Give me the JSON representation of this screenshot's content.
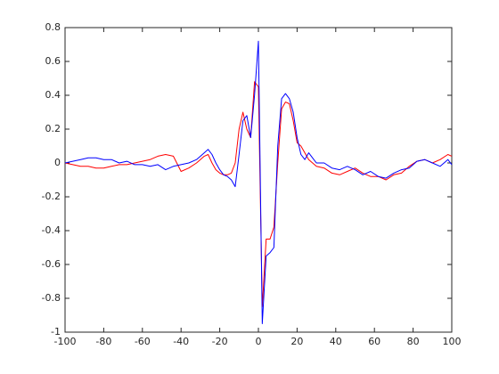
{
  "chart_data": {
    "type": "line",
    "x": [
      -100,
      -96,
      -92,
      -88,
      -84,
      -80,
      -76,
      -72,
      -68,
      -64,
      -60,
      -56,
      -52,
      -48,
      -44,
      -40,
      -36,
      -32,
      -28,
      -26,
      -24,
      -22,
      -20,
      -18,
      -16,
      -14,
      -12,
      -10,
      -8,
      -6,
      -4,
      -2,
      0,
      2,
      4,
      6,
      8,
      10,
      12,
      14,
      16,
      18,
      20,
      22,
      24,
      26,
      28,
      30,
      34,
      38,
      42,
      46,
      50,
      54,
      58,
      62,
      66,
      70,
      74,
      78,
      82,
      86,
      90,
      94,
      98,
      100
    ],
    "series": [
      {
        "color": "#ff0000",
        "values": [
          0.0,
          -0.01,
          -0.02,
          -0.02,
          -0.03,
          -0.03,
          -0.02,
          -0.01,
          -0.01,
          0.0,
          0.01,
          0.02,
          0.04,
          0.05,
          0.04,
          -0.05,
          -0.03,
          0.0,
          0.04,
          0.05,
          0.0,
          -0.04,
          -0.06,
          -0.07,
          -0.07,
          -0.06,
          0.0,
          0.2,
          0.3,
          0.2,
          0.15,
          0.48,
          0.45,
          -0.85,
          -0.45,
          -0.45,
          -0.38,
          0.0,
          0.32,
          0.36,
          0.35,
          0.25,
          0.12,
          0.1,
          0.06,
          0.02,
          0.0,
          -0.02,
          -0.03,
          -0.06,
          -0.07,
          -0.05,
          -0.03,
          -0.06,
          -0.08,
          -0.08,
          -0.1,
          -0.07,
          -0.06,
          -0.02,
          0.01,
          0.02,
          0.0,
          0.02,
          0.05,
          0.04
        ]
      },
      {
        "color": "#0000ff",
        "values": [
          0.0,
          0.01,
          0.02,
          0.03,
          0.03,
          0.02,
          0.02,
          0.0,
          0.01,
          -0.01,
          -0.01,
          -0.02,
          -0.01,
          -0.04,
          -0.02,
          -0.01,
          0.0,
          0.02,
          0.06,
          0.08,
          0.05,
          0.0,
          -0.04,
          -0.07,
          -0.08,
          -0.1,
          -0.14,
          0.05,
          0.25,
          0.28,
          0.15,
          0.4,
          0.72,
          -0.95,
          -0.55,
          -0.53,
          -0.5,
          0.1,
          0.38,
          0.41,
          0.38,
          0.3,
          0.15,
          0.05,
          0.02,
          0.06,
          0.03,
          0.0,
          0.0,
          -0.03,
          -0.04,
          -0.02,
          -0.04,
          -0.07,
          -0.05,
          -0.08,
          -0.09,
          -0.06,
          -0.04,
          -0.03,
          0.01,
          0.02,
          0.0,
          -0.02,
          0.02,
          -0.01
        ]
      }
    ],
    "xlim": [
      -100,
      100
    ],
    "xticks": [
      -100,
      -80,
      -60,
      -40,
      -20,
      0,
      20,
      40,
      60,
      80,
      100
    ],
    "ylim": [
      -1,
      0.8
    ],
    "yticks": [
      -1,
      -0.8,
      -0.6,
      -0.4,
      -0.2,
      0,
      0.2,
      0.4,
      0.6,
      0.8
    ],
    "grid": false
  }
}
